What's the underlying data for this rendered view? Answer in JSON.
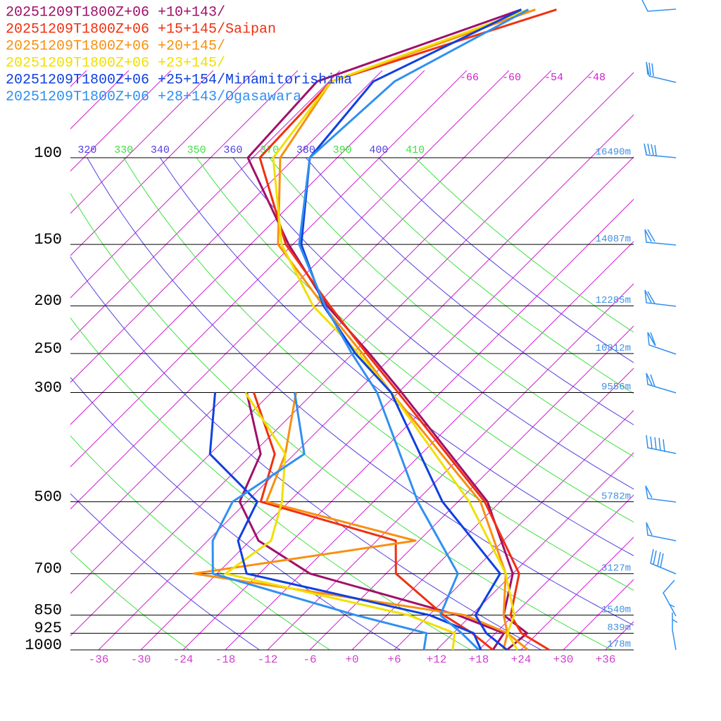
{
  "chart_data": {
    "type": "skewt",
    "ylim": [
      1000,
      100
    ],
    "yticks": [
      100,
      150,
      200,
      250,
      300,
      500,
      700,
      850,
      925,
      1000
    ],
    "xlim": [
      -40,
      40
    ],
    "xticks": [
      -36,
      -30,
      -24,
      -18,
      -12,
      -6,
      {
        "value": 0,
        "label": "+0"
      },
      {
        "value": 6,
        "label": "+6"
      },
      {
        "value": 12,
        "label": "+12"
      },
      {
        "value": 18,
        "label": "+18"
      },
      {
        "value": 24,
        "label": "+24"
      },
      {
        "value": 30,
        "label": "+30"
      },
      {
        "value": 36,
        "label": "+36"
      }
    ],
    "isotherm_labels": [
      -66,
      -60,
      -54,
      -48
    ],
    "isotherm_color": "#d020d0",
    "adiabats": [
      250,
      260,
      270,
      280,
      290,
      300,
      310,
      320,
      330,
      340,
      350,
      360,
      370,
      380,
      390,
      400,
      410
    ],
    "adiabat_colors": [
      "#5040e0",
      "#40e040"
    ],
    "height_labels": [
      {
        "pressure": 100,
        "height": 16490,
        "label": "16490m"
      },
      {
        "pressure": 150,
        "height": 14087,
        "label": "14087m"
      },
      {
        "pressure": 200,
        "height": 12285,
        "label": "12285m"
      },
      {
        "pressure": 250,
        "height": 10812,
        "label": "10812m"
      },
      {
        "pressure": 300,
        "height": 9556,
        "label": "9556m"
      },
      {
        "pressure": 500,
        "height": 5782,
        "label": "5782m"
      },
      {
        "pressure": 700,
        "height": 3127,
        "label": "3127m"
      },
      {
        "pressure": 850,
        "height": 1540,
        "label": "1540m"
      },
      {
        "pressure": 925,
        "height": 839,
        "label": "839m"
      },
      {
        "pressure": 1000,
        "height": 178,
        "label": "178m"
      }
    ],
    "levels": [
      1000,
      925,
      850,
      700,
      500,
      300,
      250,
      200,
      150,
      100,
      70,
      50
    ],
    "dew_levels": [
      1000,
      925,
      850,
      700,
      600,
      500,
      400,
      300
    ],
    "series": [
      {
        "name": "20251209T1800Z+06 +10+143/",
        "color": "#a0106a",
        "values": [
          22,
          22.5,
          16.6,
          12,
          -1.8,
          -29.5,
          -39.6,
          -52.4,
          -66.6,
          -84.7,
          -85.7,
          -66.9
        ],
        "dewpoints": [
          20,
          19.2,
          10.1,
          -16.8,
          -28.8,
          -37,
          -40.8,
          -51.5
        ]
      },
      {
        "name": "20251209T1800Z+06 +15+145/Saipan",
        "color": "#f03010",
        "values": [
          28,
          21.7,
          17.6,
          12.9,
          -2.2,
          -30,
          -40,
          -52,
          -67,
          -83,
          -83.7,
          -61.9
        ],
        "dewpoints": [
          20,
          14.7,
          8.1,
          -4.6,
          -9.3,
          -34,
          -38.8,
          -50.5
        ]
      },
      {
        "name": "20251209T1800Z+06 +20+145/",
        "color": "#f89010",
        "values": [
          25,
          19.7,
          16.6,
          11,
          -2.8,
          -31,
          -40.6,
          -52.9,
          -68.1,
          -80.1,
          -83.7,
          -64.9
        ],
        "dewpoints": [
          21.5,
          19.7,
          11.1,
          -33.3,
          -6.5,
          -33.2,
          -37.3,
          -44.5
        ]
      },
      {
        "name": "20251209T1800Z+06 +23+145/",
        "color": "#f0e000",
        "values": [
          23.5,
          19.7,
          18.1,
          11,
          -4.4,
          -31,
          -41.1,
          -54.4,
          -67.6,
          -81.1,
          -83.7,
          -65.9
        ],
        "dewpoints": [
          14.3,
          12.2,
          3.1,
          -28.8,
          -27,
          -31,
          -37.3,
          -51.7
        ]
      },
      {
        "name": "20251209T1800Z+06 +25+154/Minamitorishima",
        "color": "#1040e0",
        "values": [
          22,
          16.7,
          12.6,
          10.2,
          -8.2,
          -31,
          -41.6,
          -52.9,
          -64.8,
          -75.9,
          -77.7,
          -66.9
        ],
        "dewpoints": [
          18.3,
          14.9,
          6.1,
          -25.8,
          -31.7,
          -34.5,
          -48,
          -56
        ]
      },
      {
        "name": "20251209T1800Z+06 +28+143/Ogasawara",
        "color": "#3090f0",
        "values": [
          18,
          13.2,
          7.6,
          4.2,
          -11.7,
          -33,
          -42.1,
          -52.7,
          -65.1,
          -75.9,
          -74.7,
          -65.9
        ],
        "dewpoints": [
          10.2,
          8.2,
          -4.4,
          -30.6,
          -35.3,
          -38,
          -34.6,
          -44.7
        ]
      }
    ]
  }
}
